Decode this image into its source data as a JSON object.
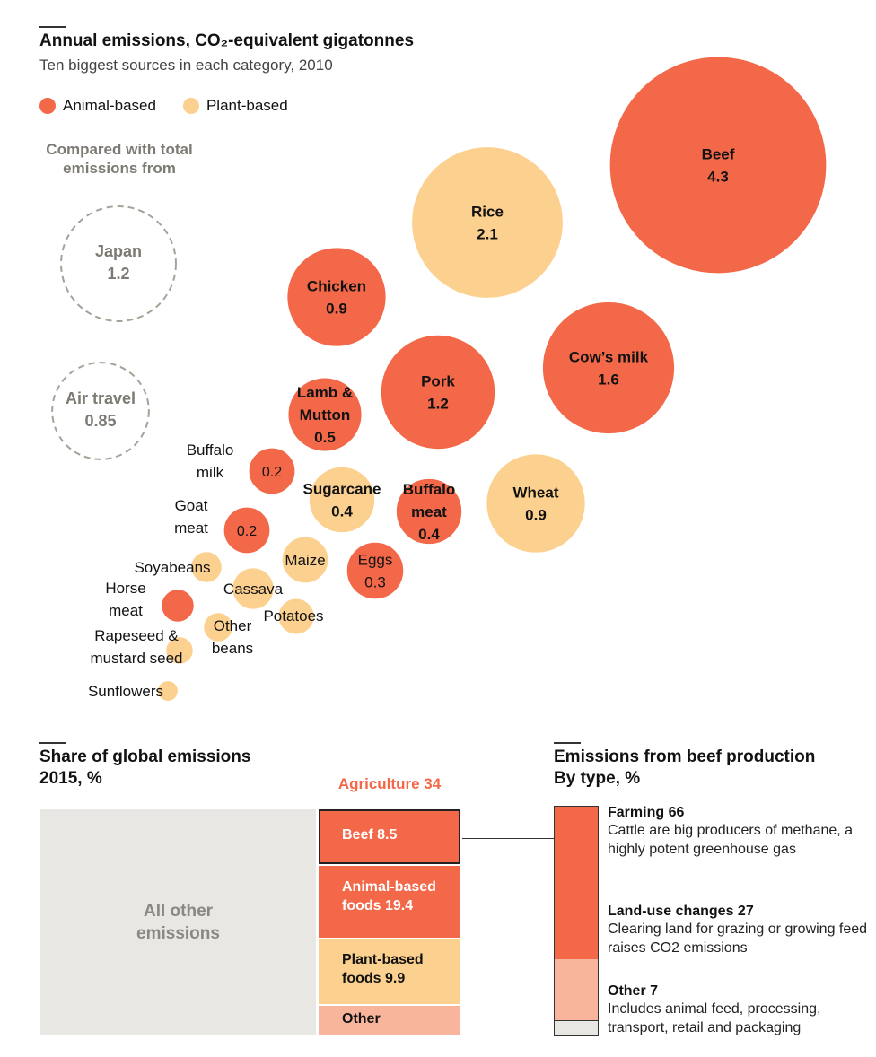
{
  "header": {
    "title": "Annual emissions, CO₂-equivalent gigatonnes",
    "subtitle": "Ten biggest sources in each category, 2010"
  },
  "legend": {
    "items": [
      {
        "label": "Animal-based",
        "color": "#f26849"
      },
      {
        "label": "Plant-based",
        "color": "#fcd08e"
      }
    ]
  },
  "comparison": {
    "title": "Compared with total emissions from",
    "items": [
      {
        "name": "Japan",
        "value": 1.2
      },
      {
        "name": "Air travel",
        "value": 0.85
      }
    ]
  },
  "colors": {
    "animal": "#f26849",
    "plant": "#fcd08e",
    "other": "#f8b59c",
    "grey_box": "#e8e7e3",
    "dash": "#a5a398",
    "agri_label": "#f26849"
  },
  "chart_data": [
    {
      "type": "bubble",
      "title": "Annual emissions, CO₂-equivalent gigatonnes",
      "subtitle": "Ten biggest sources in each category, 2010",
      "series": [
        {
          "name": "Animal-based",
          "points": [
            {
              "label": "Beef",
              "value": 4.3,
              "show_value": true
            },
            {
              "label": "Cow's milk",
              "value": 1.6,
              "show_value": true
            },
            {
              "label": "Pork",
              "value": 1.2,
              "show_value": true
            },
            {
              "label": "Chicken",
              "value": 0.9,
              "show_value": true
            },
            {
              "label": "Lamb & Mutton",
              "value": 0.5,
              "show_value": true
            },
            {
              "label": "Buffalo meat",
              "value": 0.4,
              "show_value": true
            },
            {
              "label": "Eggs",
              "value": 0.3,
              "show_value": true
            },
            {
              "label": "Buffalo milk",
              "value": 0.2,
              "show_value": true
            },
            {
              "label": "Goat meat",
              "value": 0.2,
              "show_value": true
            },
            {
              "label": "Horse meat",
              "value": 0.1,
              "show_value": false
            }
          ]
        },
        {
          "name": "Plant-based",
          "points": [
            {
              "label": "Rice",
              "value": 2.1,
              "show_value": true
            },
            {
              "label": "Wheat",
              "value": 0.9,
              "show_value": true
            },
            {
              "label": "Sugarcane",
              "value": 0.4,
              "show_value": true
            },
            {
              "label": "Maize",
              "value": 0.2,
              "show_value": false
            },
            {
              "label": "Cassava",
              "value": 0.16,
              "show_value": false
            },
            {
              "label": "Potatoes",
              "value": 0.12,
              "show_value": false
            },
            {
              "label": "Soyabeans",
              "value": 0.09,
              "show_value": false
            },
            {
              "label": "Other beans",
              "value": 0.08,
              "show_value": false
            },
            {
              "label": "Rapeseed & mustard seed",
              "value": 0.07,
              "show_value": false
            },
            {
              "label": "Sunflowers",
              "value": 0.04,
              "show_value": false
            }
          ]
        }
      ]
    },
    {
      "type": "treemap",
      "title": "Share of global emissions",
      "subtitle": "2015, %",
      "group_label": "Agriculture 34",
      "segments": [
        {
          "label": "All other emissions",
          "value": 66
        },
        {
          "label": "Beef 8.5",
          "value": 8.5
        },
        {
          "label": "Animal-based foods 19.4",
          "value": 19.4
        },
        {
          "label": "Plant-based foods 9.9",
          "value": 9.9
        },
        {
          "label": "Other",
          "value": 4.3
        }
      ]
    },
    {
      "type": "stacked_bar",
      "title": "Emissions from beef production",
      "subtitle": "By type, %",
      "segments": [
        {
          "label": "Farming 66",
          "value": 66,
          "note": "Cattle are big producers of methane, a highly potent greenhouse gas"
        },
        {
          "label": "Land-use changes 27",
          "value": 27,
          "note": "Clearing land for grazing or growing feed raises CO2 emissions"
        },
        {
          "label": "Other 7",
          "value": 7,
          "note": "Includes animal feed, processing, transport, retail and packaging"
        }
      ]
    }
  ],
  "share": {
    "title": "Share of global emissions",
    "subtitle": "2015, %",
    "agriculture_label": "Agriculture 34",
    "all_other": "All other emissions",
    "beef": "Beef 8.5",
    "animal": "Animal-based foods 19.4",
    "plant": "Plant-based foods 9.9",
    "other": "Other"
  },
  "beef": {
    "title": "Emissions from beef production",
    "subtitle": "By type, %",
    "farming_title": "Farming 66",
    "farming_text": "Cattle are big producers of methane, a highly potent greenhouse gas",
    "land_title": "Land-use changes 27",
    "land_text": "Clearing land for grazing or growing feed raises CO2 emissions",
    "other_title": "Other 7",
    "other_text": "Includes animal feed, processing, transport, retail and packaging"
  }
}
